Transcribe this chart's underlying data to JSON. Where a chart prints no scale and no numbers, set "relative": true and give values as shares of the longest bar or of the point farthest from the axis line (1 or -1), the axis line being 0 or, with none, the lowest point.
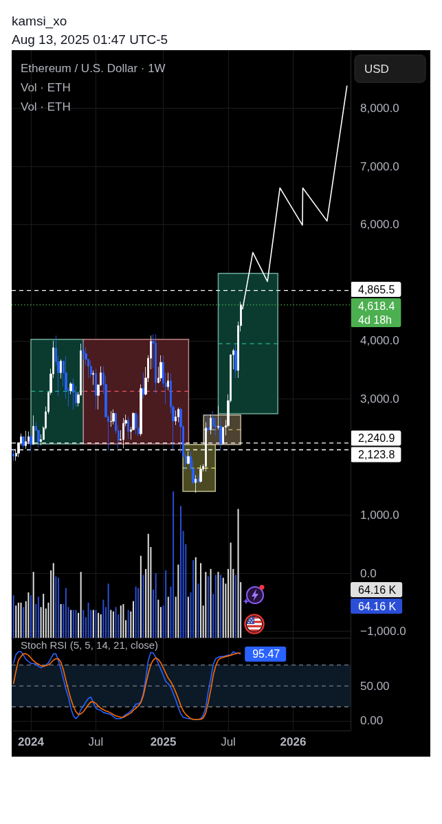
{
  "chart_data": [
    {
      "type": "candlestick",
      "title": "Ethereum / U.S. Dollar · 1W",
      "ylabel": "USD",
      "annotations": [
        "kamsi_xo",
        "Aug 13, 2025 01:47 UTC-5"
      ],
      "x": [
        "2023-11-13",
        "2023-11-20",
        "2023-11-27",
        "2023-12-04",
        "2023-12-11",
        "2023-12-18",
        "2023-12-25",
        "2024-01-01",
        "2024-01-08",
        "2024-01-15",
        "2024-01-22",
        "2024-01-29",
        "2024-02-05",
        "2024-02-12",
        "2024-02-19",
        "2024-02-26",
        "2024-03-04",
        "2024-03-11",
        "2024-03-18",
        "2024-03-25",
        "2024-04-01",
        "2024-04-08",
        "2024-04-15",
        "2024-04-22",
        "2024-04-29",
        "2024-05-06",
        "2024-05-13",
        "2024-05-20",
        "2024-05-27",
        "2024-06-03",
        "2024-06-10",
        "2024-06-17",
        "2024-06-24",
        "2024-07-01",
        "2024-07-08",
        "2024-07-15",
        "2024-07-22",
        "2024-07-29",
        "2024-08-05",
        "2024-08-12",
        "2024-08-19",
        "2024-08-26",
        "2024-09-02",
        "2024-09-09",
        "2024-09-16",
        "2024-09-23",
        "2024-09-30",
        "2024-10-07",
        "2024-10-14",
        "2024-10-21",
        "2024-10-28",
        "2024-11-04",
        "2024-11-11",
        "2024-11-18",
        "2024-11-25",
        "2024-12-02",
        "2024-12-09",
        "2024-12-16",
        "2024-12-23",
        "2024-12-30",
        "2025-01-06",
        "2025-01-13",
        "2025-01-20",
        "2025-01-27",
        "2025-02-03",
        "2025-02-10",
        "2025-02-17",
        "2025-02-24",
        "2025-03-03",
        "2025-03-10",
        "2025-03-17",
        "2025-03-24",
        "2025-03-31",
        "2025-04-07",
        "2025-04-14",
        "2025-04-21",
        "2025-04-28",
        "2025-05-05",
        "2025-05-12",
        "2025-05-19",
        "2025-05-26",
        "2025-06-02",
        "2025-06-09",
        "2025-06-16",
        "2025-06-23",
        "2025-06-30",
        "2025-07-07",
        "2025-07-14",
        "2025-07-21",
        "2025-07-28",
        "2025-08-04",
        "2025-08-11"
      ],
      "ohlc": [
        [
          2055,
          2140,
          1935,
          2015
        ],
        [
          2015,
          2135,
          1935,
          2065
        ],
        [
          2065,
          2250,
          2000,
          2245
        ],
        [
          2245,
          2405,
          2200,
          2350
        ],
        [
          2350,
          2355,
          2150,
          2195
        ],
        [
          2195,
          2450,
          2140,
          2265
        ],
        [
          2265,
          2440,
          2220,
          2350
        ],
        [
          2350,
          2415,
          2100,
          2220
        ],
        [
          2220,
          2715,
          2210,
          2530
        ],
        [
          2530,
          2600,
          2450,
          2455
        ],
        [
          2455,
          2470,
          2165,
          2265
        ],
        [
          2265,
          2390,
          2200,
          2300
        ],
        [
          2300,
          2530,
          2290,
          2500
        ],
        [
          2500,
          2870,
          2470,
          2780
        ],
        [
          2780,
          3130,
          2740,
          3110
        ],
        [
          3110,
          3520,
          3070,
          3430
        ],
        [
          3430,
          4000,
          3360,
          3880
        ],
        [
          3880,
          4090,
          3570,
          3640
        ],
        [
          3640,
          3740,
          3055,
          3450
        ],
        [
          3450,
          3680,
          3350,
          3650
        ],
        [
          3650,
          3660,
          3210,
          3450
        ],
        [
          3450,
          3730,
          3000,
          3150
        ],
        [
          3150,
          3200,
          2870,
          3140
        ],
        [
          3140,
          3290,
          3080,
          3260
        ],
        [
          3260,
          3350,
          2810,
          3110
        ],
        [
          3110,
          3220,
          2860,
          2930
        ],
        [
          2930,
          3120,
          2870,
          3070
        ],
        [
          3070,
          3950,
          3050,
          3830
        ],
        [
          3830,
          3980,
          3680,
          3780
        ],
        [
          3780,
          3890,
          3580,
          3680
        ],
        [
          3680,
          3690,
          3360,
          3560
        ],
        [
          3560,
          3660,
          3370,
          3420
        ],
        [
          3420,
          3490,
          3240,
          3440
        ],
        [
          3440,
          3520,
          2820,
          3060
        ],
        [
          3060,
          3250,
          2820,
          3240
        ],
        [
          3240,
          3560,
          3220,
          3450
        ],
        [
          3450,
          3560,
          3090,
          3250
        ],
        [
          3250,
          3400,
          2680,
          2690
        ],
        [
          2690,
          2720,
          2110,
          2610
        ],
        [
          2610,
          2790,
          2520,
          2615
        ],
        [
          2615,
          2820,
          2560,
          2750
        ],
        [
          2750,
          2770,
          2400,
          2450
        ],
        [
          2450,
          2550,
          2150,
          2290
        ],
        [
          2290,
          2460,
          2280,
          2300
        ],
        [
          2300,
          2670,
          2150,
          2580
        ],
        [
          2580,
          2730,
          2530,
          2630
        ],
        [
          2630,
          2690,
          2310,
          2440
        ],
        [
          2440,
          2520,
          2300,
          2470
        ],
        [
          2470,
          2770,
          2460,
          2750
        ],
        [
          2750,
          2770,
          2390,
          2500
        ],
        [
          2500,
          2720,
          2360,
          2400
        ],
        [
          2400,
          3250,
          2360,
          3180
        ],
        [
          3180,
          3450,
          3010,
          3080
        ],
        [
          3080,
          3550,
          3060,
          3360
        ],
        [
          3360,
          3750,
          3290,
          3700
        ],
        [
          3700,
          4090,
          3510,
          3990
        ],
        [
          3990,
          4110,
          3530,
          3960
        ],
        [
          3960,
          4110,
          3100,
          3280
        ],
        [
          3280,
          3550,
          3270,
          3360
        ],
        [
          3360,
          3750,
          3300,
          3630
        ],
        [
          3630,
          3750,
          3200,
          3270
        ],
        [
          3270,
          3450,
          2920,
          3210
        ],
        [
          3210,
          3450,
          3150,
          3310
        ],
        [
          3310,
          3440,
          2750,
          2860
        ],
        [
          2860,
          2900,
          2120,
          2620
        ],
        [
          2620,
          2800,
          2550,
          2690
        ],
        [
          2690,
          2850,
          2600,
          2820
        ],
        [
          2820,
          2850,
          2070,
          2520
        ],
        [
          2520,
          2550,
          1990,
          2020
        ],
        [
          2020,
          2060,
          1760,
          1890
        ],
        [
          1890,
          2100,
          1870,
          2010
        ],
        [
          2010,
          2100,
          1770,
          1800
        ],
        [
          1800,
          1960,
          1540,
          1560
        ],
        [
          1560,
          1690,
          1385,
          1620
        ],
        [
          1620,
          1690,
          1540,
          1580
        ],
        [
          1580,
          1860,
          1560,
          1790
        ],
        [
          1790,
          1880,
          1750,
          1840
        ],
        [
          1840,
          2600,
          1750,
          2500
        ],
        [
          2500,
          2740,
          2410,
          2470
        ],
        [
          2470,
          2730,
          2390,
          2670
        ],
        [
          2670,
          2790,
          2480,
          2540
        ],
        [
          2540,
          2680,
          2370,
          2510
        ],
        [
          2510,
          2880,
          2470,
          2530
        ],
        [
          2530,
          2680,
          2110,
          2230
        ],
        [
          2230,
          2520,
          2220,
          2510
        ],
        [
          2510,
          2640,
          2370,
          2540
        ],
        [
          2540,
          3080,
          2510,
          2970
        ],
        [
          2970,
          3760,
          2940,
          3760
        ],
        [
          3760,
          3860,
          3510,
          3830
        ],
        [
          3830,
          3940,
          3360,
          3490
        ],
        [
          3490,
          4330,
          3360,
          4260
        ],
        [
          4260,
          4670,
          4160,
          4618.4
        ]
      ],
      "colors": [
        "#2962ff",
        "#ffffff",
        "#ffffff",
        "#ffffff",
        "#2962ff",
        "#ffffff",
        "#ffffff",
        "#2962ff",
        "#ffffff",
        "#2962ff",
        "#2962ff",
        "#ffffff",
        "#ffffff",
        "#ffffff",
        "#ffffff",
        "#ffffff",
        "#ffffff",
        "#2962ff",
        "#2962ff",
        "#ffffff",
        "#2962ff",
        "#2962ff",
        "#2962ff",
        "#ffffff",
        "#2962ff",
        "#2962ff",
        "#ffffff",
        "#ffffff",
        "#2962ff",
        "#2962ff",
        "#2962ff",
        "#2962ff",
        "#ffffff",
        "#2962ff",
        "#ffffff",
        "#ffffff",
        "#2962ff",
        "#2962ff",
        "#2962ff",
        "#ffffff",
        "#ffffff",
        "#2962ff",
        "#2962ff",
        "#ffffff",
        "#ffffff",
        "#ffffff",
        "#2962ff",
        "#ffffff",
        "#ffffff",
        "#2962ff",
        "#2962ff",
        "#ffffff",
        "#2962ff",
        "#ffffff",
        "#ffffff",
        "#ffffff",
        "#2962ff",
        "#2962ff",
        "#ffffff",
        "#ffffff",
        "#2962ff",
        "#2962ff",
        "#ffffff",
        "#2962ff",
        "#2962ff",
        "#ffffff",
        "#ffffff",
        "#2962ff",
        "#2962ff",
        "#2962ff",
        "#ffffff",
        "#2962ff",
        "#2962ff",
        "#ffffff",
        "#2962ff",
        "#ffffff",
        "#ffffff",
        "#ffffff",
        "#2962ff",
        "#ffffff",
        "#2962ff",
        "#2962ff",
        "#ffffff",
        "#2962ff",
        "#ffffff",
        "#ffffff",
        "#ffffff",
        "#ffffff",
        "#ffffff",
        "#2962ff",
        "#ffffff",
        "#ffffff"
      ],
      "series": [
        {
          "type": "line",
          "color": "#22b893",
          "line_style": "dashed",
          "x": [
            "2024-01-01",
            "2024-05-27"
          ],
          "values": [
            3130,
            3130
          ],
          "lower": [
            2225,
            2225
          ],
          "upper": [
            4025,
            4025
          ]
        },
        {
          "type": "line",
          "color": "#e75461",
          "line_style": "dashed",
          "x": [
            "2024-05-27",
            "2025-03-18"
          ],
          "values": [
            3130,
            3130
          ],
          "lower": [
            2225,
            2225
          ],
          "upper": [
            4025,
            4025
          ]
        },
        {
          "type": "line",
          "color": "#eae76a",
          "line_style": "dashed",
          "x": [
            "2025-03-02",
            "2025-06-01"
          ],
          "values": [
            1810,
            1810
          ],
          "lower": [
            1410,
            1410
          ],
          "upper": [
            2215,
            2215
          ]
        },
        {
          "type": "line",
          "color": "#f0d196",
          "line_style": "dashed",
          "x": [
            "2025-04-29",
            "2025-08-11"
          ],
          "values": [
            2470,
            2470
          ],
          "lower": [
            2215,
            2215
          ],
          "upper": [
            2720,
            2720
          ]
        },
        {
          "type": "line",
          "color": "#22b893",
          "line_style": "dashed",
          "x": [
            "2025-06-09",
            "2025-11-23"
          ],
          "values": [
            3950,
            3950
          ],
          "lower": [
            2745,
            2745
          ],
          "upper": [
            5160,
            5160
          ]
        },
        {
          "type": "line",
          "color": "#ffffff",
          "x": [
            "2025-08-16",
            "2025-09-14",
            "2025-10-25",
            "2025-11-29",
            "2026-01-31",
            "2026-02-01",
            "2026-04-10",
            "2026-06-05"
          ],
          "values": [
            4540,
            5520,
            5020,
            6630,
            5990,
            6630,
            6060,
            8390
          ]
        }
      ],
      "xlim": [
        "2023-11-08",
        "2026-06-15"
      ],
      "xticks": [
        {
          "value": "2024-01-01",
          "label": null
        },
        {
          "value": "2024-07-01",
          "label": null
        },
        {
          "value": "2025-01-06",
          "label": null
        },
        {
          "value": "2025-07-07",
          "label": null
        },
        {
          "value": "2026-01-05",
          "label": null
        }
      ],
      "ylim": [
        -1110,
        9000
      ],
      "yticks": [
        {
          "value": 8000,
          "label": "8,000.0"
        },
        {
          "value": 7000,
          "label": "7,000.0"
        },
        {
          "value": 6000,
          "label": "6,000.0"
        },
        {
          "value": 4000,
          "label": "4,000.0"
        },
        {
          "value": 3000,
          "label": "3,000.0"
        },
        {
          "value": 1000,
          "label": "1,000.0"
        },
        {
          "value": 0,
          "label": "0.0"
        },
        {
          "value": -1000,
          "label": "−1,000.0"
        }
      ],
      "ref_lines": [
        {
          "axis": "y",
          "value": 4865.5,
          "label": "4,865.5",
          "line_style": "dashed",
          "color": "#ffffff"
        },
        {
          "axis": "y",
          "value": 4618.4,
          "label": "4,618.4\n4d 18h",
          "line_style": "dotted",
          "color": "#4caf50"
        },
        {
          "axis": "y",
          "value": 2240.9,
          "label": "2,240.9",
          "line_style": "dashed",
          "color": "#ffffff"
        },
        {
          "axis": "y",
          "value": 2123.8,
          "label": "2,123.8",
          "line_style": "dashed",
          "color": "#ffffff"
        }
      ],
      "grid": true,
      "tick_labels": "y"
    },
    {
      "type": "bar",
      "title": "Vol · ETH",
      "subtitle": "Vol · ETH",
      "relative": true,
      "x": [
        "2023-11-13",
        "2023-11-20",
        "2023-11-27",
        "2023-12-04",
        "2023-12-11",
        "2023-12-18",
        "2023-12-25",
        "2024-01-01",
        "2024-01-08",
        "2024-01-15",
        "2024-01-22",
        "2024-01-29",
        "2024-02-05",
        "2024-02-12",
        "2024-02-19",
        "2024-02-26",
        "2024-03-04",
        "2024-03-11",
        "2024-03-18",
        "2024-03-25",
        "2024-04-01",
        "2024-04-08",
        "2024-04-15",
        "2024-04-22",
        "2024-04-29",
        "2024-05-06",
        "2024-05-13",
        "2024-05-20",
        "2024-05-27",
        "2024-06-03",
        "2024-06-10",
        "2024-06-17",
        "2024-06-24",
        "2024-07-01",
        "2024-07-08",
        "2024-07-15",
        "2024-07-22",
        "2024-07-29",
        "2024-08-05",
        "2024-08-12",
        "2024-08-19",
        "2024-08-26",
        "2024-09-02",
        "2024-09-09",
        "2024-09-16",
        "2024-09-23",
        "2024-09-30",
        "2024-10-07",
        "2024-10-14",
        "2024-10-21",
        "2024-10-28",
        "2024-11-04",
        "2024-11-11",
        "2024-11-18",
        "2024-11-25",
        "2024-12-02",
        "2024-12-09",
        "2024-12-16",
        "2024-12-23",
        "2024-12-30",
        "2025-01-06",
        "2025-01-13",
        "2025-01-20",
        "2025-01-27",
        "2025-02-03",
        "2025-02-10",
        "2025-02-17",
        "2025-02-24",
        "2025-03-03",
        "2025-03-10",
        "2025-03-17",
        "2025-03-24",
        "2025-03-31",
        "2025-04-07",
        "2025-04-14",
        "2025-04-21",
        "2025-04-28",
        "2025-05-05",
        "2025-05-12",
        "2025-05-19",
        "2025-05-26",
        "2025-06-02",
        "2025-06-09",
        "2025-06-16",
        "2025-06-23",
        "2025-06-30",
        "2025-07-07",
        "2025-07-14",
        "2025-07-21",
        "2025-07-28",
        "2025-08-04",
        "2025-08-11"
      ],
      "values": [
        0.29,
        0.22,
        0.24,
        0.24,
        0.21,
        0.25,
        0.31,
        0.29,
        0.45,
        0.23,
        0.28,
        0.21,
        0.3,
        0.2,
        0.24,
        0.46,
        0.51,
        0.42,
        0.41,
        0.23,
        0.23,
        0.34,
        0.21,
        0.19,
        0.19,
        0.19,
        0.17,
        0.45,
        0.19,
        0.14,
        0.24,
        0.19,
        0.19,
        0.19,
        0.17,
        0.16,
        0.26,
        0.21,
        0.37,
        0.19,
        0.18,
        0.21,
        0.16,
        0.22,
        0.23,
        0.12,
        0.19,
        0.18,
        0.25,
        0.35,
        0.34,
        0.56,
        0.43,
        0.47,
        0.71,
        0.62,
        0.33,
        0.44,
        0.26,
        0.21,
        0.22,
        0.46,
        0.28,
        0.35,
        1,
        0.28,
        0.5,
        0.9,
        0.73,
        0.64,
        0.28,
        0.31,
        0.53,
        0.55,
        0.37,
        0.51,
        0.22,
        0.45,
        0.42,
        0.47,
        0.3,
        0.43,
        0.45,
        0.43,
        0.41,
        0.37,
        0.47,
        0.65,
        0.47,
        0.43,
        0.88,
        0.38
      ],
      "colors": [
        "#2a4ed6",
        "#e0e0e0",
        "#e0e0e0",
        "#e0e0e0",
        "#2a4ed6",
        "#e0e0e0",
        "#e0e0e0",
        "#2a4ed6",
        "#e0e0e0",
        "#2a4ed6",
        "#2a4ed6",
        "#e0e0e0",
        "#e0e0e0",
        "#e0e0e0",
        "#e0e0e0",
        "#e0e0e0",
        "#e0e0e0",
        "#2a4ed6",
        "#2a4ed6",
        "#e0e0e0",
        "#2a4ed6",
        "#2a4ed6",
        "#2a4ed6",
        "#e0e0e0",
        "#2a4ed6",
        "#2a4ed6",
        "#e0e0e0",
        "#e0e0e0",
        "#2a4ed6",
        "#2a4ed6",
        "#2a4ed6",
        "#2a4ed6",
        "#e0e0e0",
        "#2a4ed6",
        "#e0e0e0",
        "#e0e0e0",
        "#2a4ed6",
        "#2a4ed6",
        "#2a4ed6",
        "#e0e0e0",
        "#e0e0e0",
        "#2a4ed6",
        "#2a4ed6",
        "#e0e0e0",
        "#e0e0e0",
        "#e0e0e0",
        "#2a4ed6",
        "#e0e0e0",
        "#e0e0e0",
        "#2a4ed6",
        "#2a4ed6",
        "#e0e0e0",
        "#2a4ed6",
        "#e0e0e0",
        "#e0e0e0",
        "#e0e0e0",
        "#2a4ed6",
        "#2a4ed6",
        "#e0e0e0",
        "#e0e0e0",
        "#2a4ed6",
        "#2a4ed6",
        "#e0e0e0",
        "#2a4ed6",
        "#2a4ed6",
        "#e0e0e0",
        "#e0e0e0",
        "#2a4ed6",
        "#2a4ed6",
        "#2a4ed6",
        "#e0e0e0",
        "#2a4ed6",
        "#2a4ed6",
        "#e0e0e0",
        "#2a4ed6",
        "#e0e0e0",
        "#e0e0e0",
        "#e0e0e0",
        "#2a4ed6",
        "#e0e0e0",
        "#2a4ed6",
        "#2a4ed6",
        "#e0e0e0",
        "#2a4ed6",
        "#e0e0e0",
        "#e0e0e0",
        "#e0e0e0",
        "#e0e0e0",
        "#e0e0e0",
        "#2a4ed6",
        "#e0e0e0",
        "#e0e0e0"
      ],
      "annotations": [
        "64.16 K",
        "64.16 K"
      ],
      "xlim": [
        "2023-11-08",
        "2026-06-15"
      ],
      "tick_labels": false
    },
    {
      "type": "line",
      "title": "Stoch RSI (5, 5, 14, 21, close)",
      "x": [
        "2023-11-13",
        "2023-11-20",
        "2023-11-27",
        "2023-12-04",
        "2023-12-11",
        "2023-12-18",
        "2023-12-25",
        "2024-01-01",
        "2024-01-08",
        "2024-01-15",
        "2024-01-22",
        "2024-01-29",
        "2024-02-05",
        "2024-02-12",
        "2024-02-19",
        "2024-02-26",
        "2024-03-04",
        "2024-03-11",
        "2024-03-18",
        "2024-03-25",
        "2024-04-01",
        "2024-04-08",
        "2024-04-15",
        "2024-04-22",
        "2024-04-29",
        "2024-05-06",
        "2024-05-13",
        "2024-05-20",
        "2024-05-27",
        "2024-06-03",
        "2024-06-10",
        "2024-06-17",
        "2024-06-24",
        "2024-07-01",
        "2024-07-08",
        "2024-07-15",
        "2024-07-22",
        "2024-07-29",
        "2024-08-05",
        "2024-08-12",
        "2024-08-19",
        "2024-08-26",
        "2024-09-02",
        "2024-09-09",
        "2024-09-16",
        "2024-09-23",
        "2024-09-30",
        "2024-10-07",
        "2024-10-14",
        "2024-10-21",
        "2024-10-28",
        "2024-11-04",
        "2024-11-11",
        "2024-11-18",
        "2024-11-25",
        "2024-12-02",
        "2024-12-09",
        "2024-12-16",
        "2024-12-23",
        "2024-12-30",
        "2025-01-06",
        "2025-01-13",
        "2025-01-20",
        "2025-01-27",
        "2025-02-03",
        "2025-02-10",
        "2025-02-17",
        "2025-02-24",
        "2025-03-03",
        "2025-03-10",
        "2025-03-17",
        "2025-03-24",
        "2025-03-31",
        "2025-04-07",
        "2025-04-14",
        "2025-04-21",
        "2025-04-28",
        "2025-05-05",
        "2025-05-12",
        "2025-05-19",
        "2025-05-26",
        "2025-06-02",
        "2025-06-09",
        "2025-06-16",
        "2025-06-23",
        "2025-06-30",
        "2025-07-07",
        "2025-07-14",
        "2025-07-21",
        "2025-07-28",
        "2025-08-04",
        "2025-08-11"
      ],
      "series": [
        {
          "color": "#2962ff",
          "values": [
            82,
            95,
            99,
            99,
            94,
            88,
            85,
            82,
            82,
            81,
            78,
            76,
            78,
            80,
            83,
            89,
            96,
            96,
            86,
            74,
            60,
            45,
            34,
            18,
            7,
            3,
            7,
            16,
            21,
            27,
            32,
            34,
            26,
            18,
            16,
            15,
            12,
            11,
            10,
            9,
            6,
            3,
            3,
            3,
            6,
            9,
            11,
            14,
            18,
            24,
            24,
            27,
            39,
            61,
            87,
            98,
            97,
            91,
            82,
            74,
            65,
            56,
            53,
            48,
            39,
            30,
            19,
            10,
            5,
            4,
            3,
            3,
            2,
            2,
            2,
            3,
            8,
            19,
            42,
            60,
            81,
            89,
            91,
            92,
            92,
            93,
            94,
            94,
            99,
            97,
            97,
            95.47
          ],
          "value_labels": [
            null,
            null,
            null,
            null,
            null,
            null,
            null,
            null,
            null,
            null,
            null,
            null,
            null,
            null,
            null,
            null,
            null,
            null,
            null,
            null,
            null,
            null,
            null,
            null,
            null,
            null,
            null,
            null,
            null,
            null,
            null,
            null,
            null,
            null,
            null,
            null,
            null,
            null,
            null,
            null,
            null,
            null,
            null,
            null,
            null,
            null,
            null,
            null,
            null,
            null,
            null,
            null,
            null,
            null,
            null,
            null,
            null,
            null,
            null,
            null,
            null,
            null,
            null,
            null,
            null,
            null,
            null,
            null,
            null,
            null,
            null,
            null,
            null,
            null,
            null,
            null,
            null,
            null,
            null,
            null,
            null,
            null,
            null,
            null,
            null,
            null,
            null,
            null,
            null,
            null,
            null,
            "95.47"
          ]
        },
        {
          "color": "#ff6d00",
          "values": [
            53,
            71,
            87,
            92,
            96,
            96,
            94,
            90,
            86,
            83,
            81,
            79,
            78,
            79,
            80,
            83,
            87,
            89,
            89,
            84,
            73,
            58,
            44,
            31,
            21,
            13,
            9,
            10,
            13,
            18,
            23,
            27,
            27,
            25,
            21,
            18,
            16,
            14,
            13,
            11,
            9,
            7,
            6,
            5,
            5,
            7,
            9,
            11,
            15,
            18,
            21,
            26,
            36,
            52,
            68,
            81,
            87,
            90,
            88,
            83,
            76,
            68,
            61,
            56,
            49,
            41,
            32,
            22,
            14,
            9,
            6,
            3,
            2,
            2,
            2,
            2,
            4,
            11,
            26,
            44,
            65,
            79,
            87,
            90,
            91,
            92,
            93,
            94,
            95,
            96,
            97,
            97
          ]
        }
      ],
      "xlim": [
        "2023-11-08",
        "2026-06-15"
      ],
      "xticks": [
        {
          "value": "2024-01-01",
          "label": "2024"
        },
        {
          "value": "2024-07-01",
          "label": "Jul"
        },
        {
          "value": "2025-01-06",
          "label": "2025"
        },
        {
          "value": "2025-07-07",
          "label": "Jul"
        },
        {
          "value": "2026-01-05",
          "label": "2026"
        }
      ],
      "ylim": [
        -14,
        118
      ],
      "yticks": [
        {
          "value": 50,
          "label": "50.00"
        },
        {
          "value": 0,
          "label": "0.00"
        }
      ],
      "ref_lines": [
        {
          "axis": "y",
          "value": 80,
          "line_style": "dashed",
          "color": "#787b86"
        },
        {
          "axis": "y",
          "value": 50,
          "line_style": "dashed",
          "color": "#787b86"
        },
        {
          "axis": "y",
          "value": 20,
          "line_style": "dashed",
          "color": "#787b86"
        }
      ],
      "bands": [
        {
          "axis": "y",
          "from": 20,
          "to": 80,
          "color": "#0c1a28"
        }
      ],
      "grid": true
    }
  ]
}
